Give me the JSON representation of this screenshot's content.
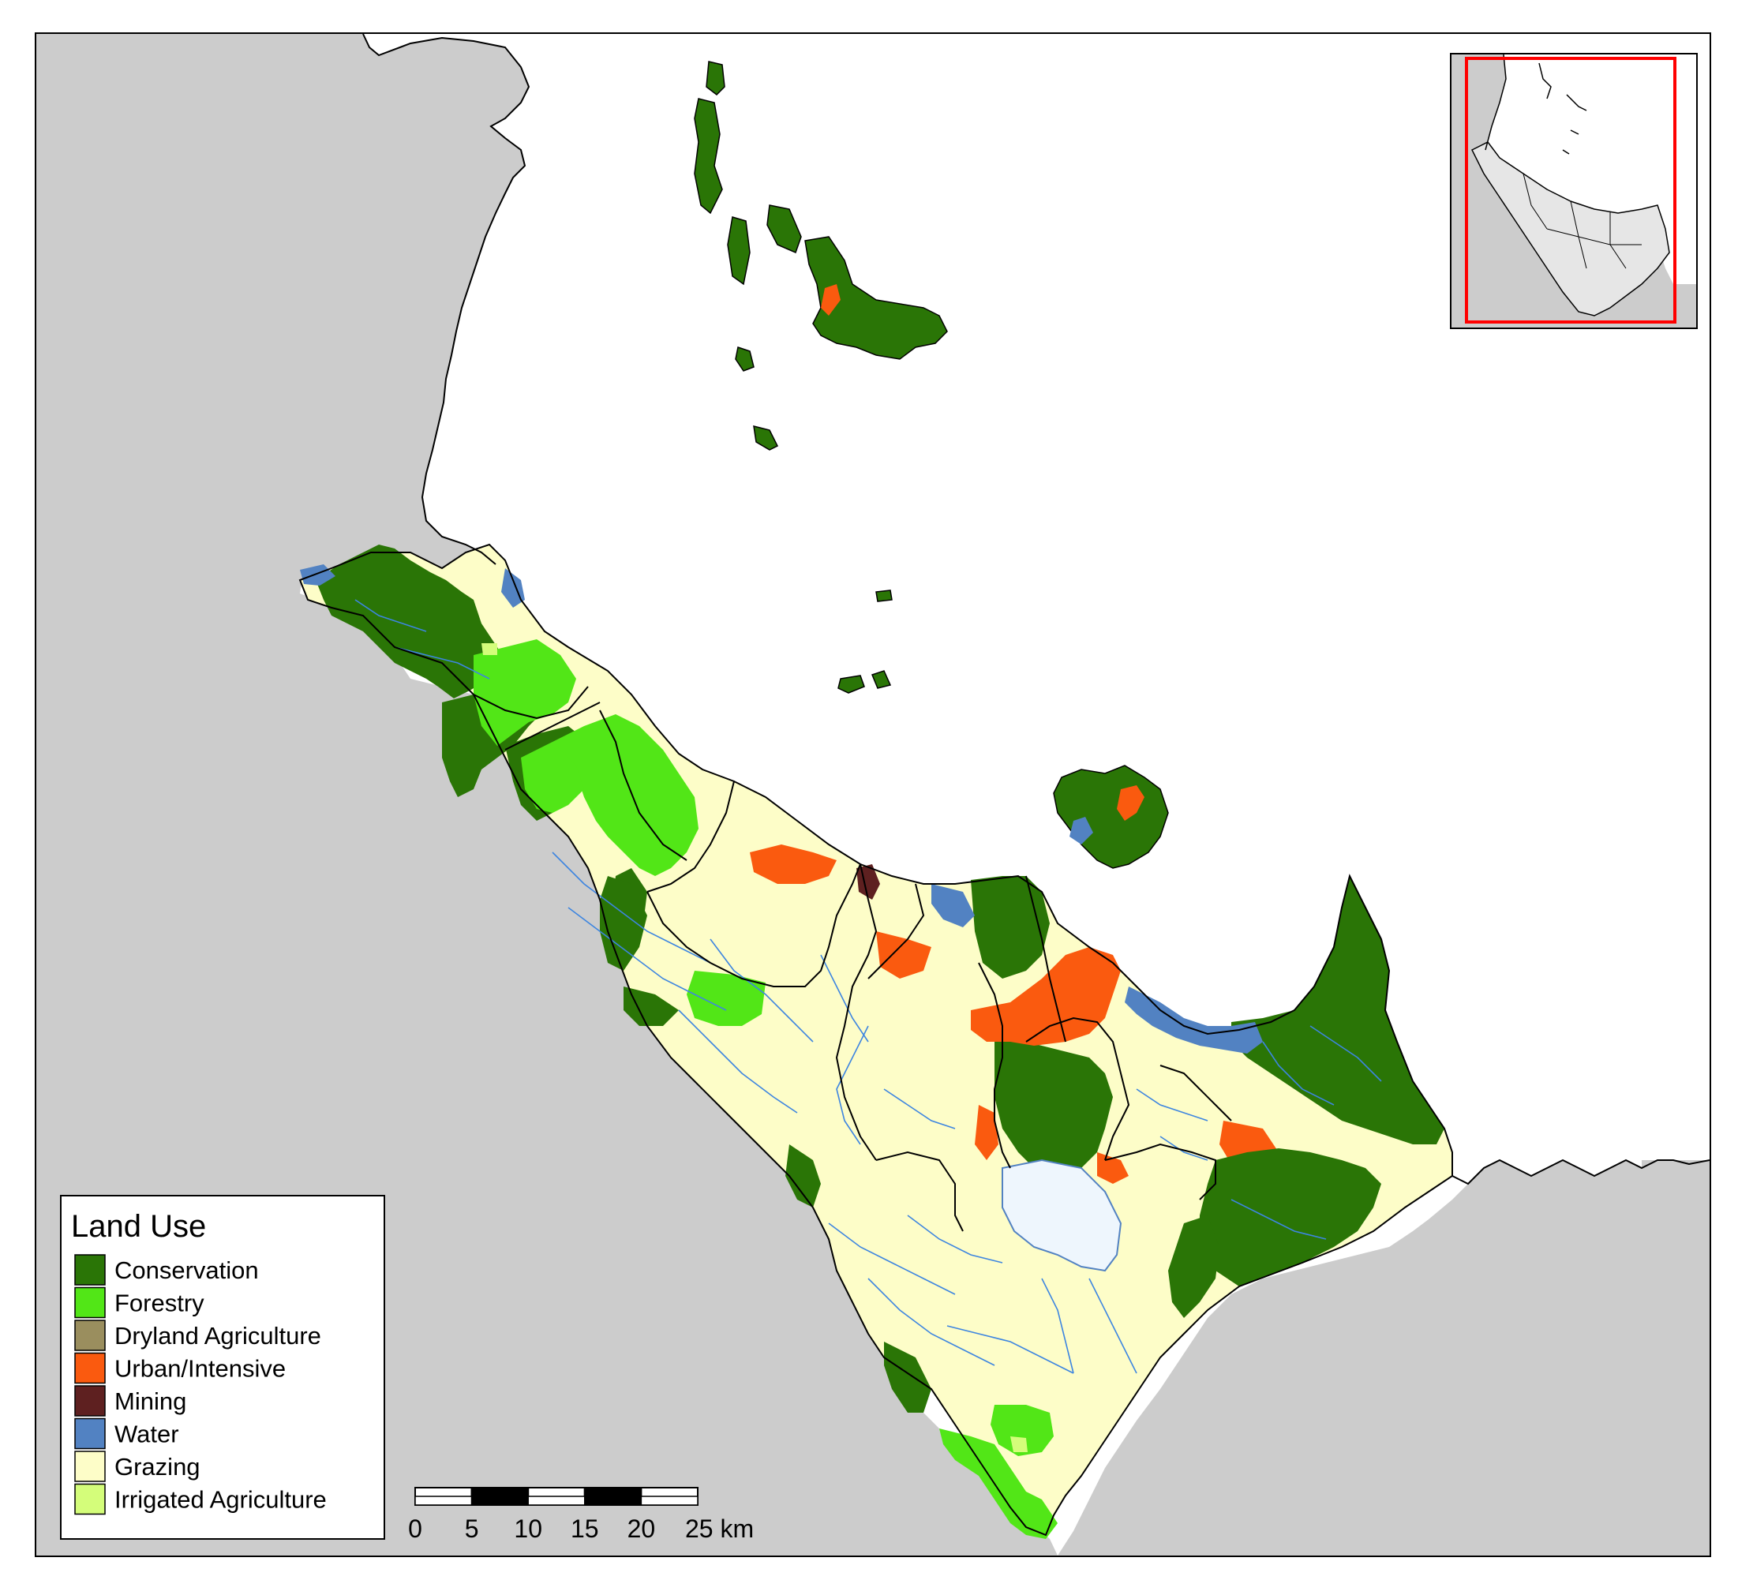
{
  "legend": {
    "title": "Land Use",
    "items": [
      {
        "label": "Conservation",
        "color": "#2a7506"
      },
      {
        "label": "Forestry",
        "color": "#52e617"
      },
      {
        "label": "Dryland Agriculture",
        "color": "#9a8e5e"
      },
      {
        "label": "Urban/Intensive",
        "color": "#fa5a0f"
      },
      {
        "label": "Mining",
        "color": "#5e2020"
      },
      {
        "label": "Water",
        "color": "#5282c2"
      },
      {
        "label": "Grazing",
        "color": "#fdfdc8"
      },
      {
        "label": "Irrigated Agriculture",
        "color": "#d4fd7a"
      }
    ]
  },
  "scalebar": {
    "ticks": [
      "0",
      "5",
      "10",
      "15",
      "20",
      "25 km"
    ]
  },
  "colors": {
    "land_outside": "#cccccc",
    "sea": "#ffffff",
    "inset_box": "#ff0000",
    "inset_land": "#e6e6e6",
    "river": "#3d85e0",
    "lake": "#eef6fd",
    "boundary": "#000000"
  }
}
